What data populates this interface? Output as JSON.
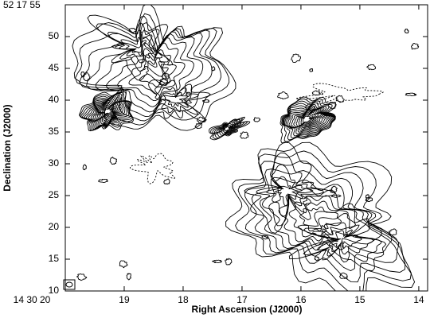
{
  "chart_data": {
    "type": "contour",
    "xlabel": "Right Ascension (J2000)",
    "ylabel": "Declination (J2000)",
    "xlim": [
      20,
      13.85
    ],
    "ylim": [
      10,
      55
    ],
    "xticks": [
      {
        "value": 20,
        "label": "14 30 20"
      },
      19,
      18,
      17,
      16,
      15,
      14
    ],
    "yticks": [
      10,
      15,
      20,
      25,
      30,
      35,
      40,
      45,
      50,
      {
        "value": 55,
        "label": "52 17 55"
      }
    ],
    "color": "#000000"
  }
}
